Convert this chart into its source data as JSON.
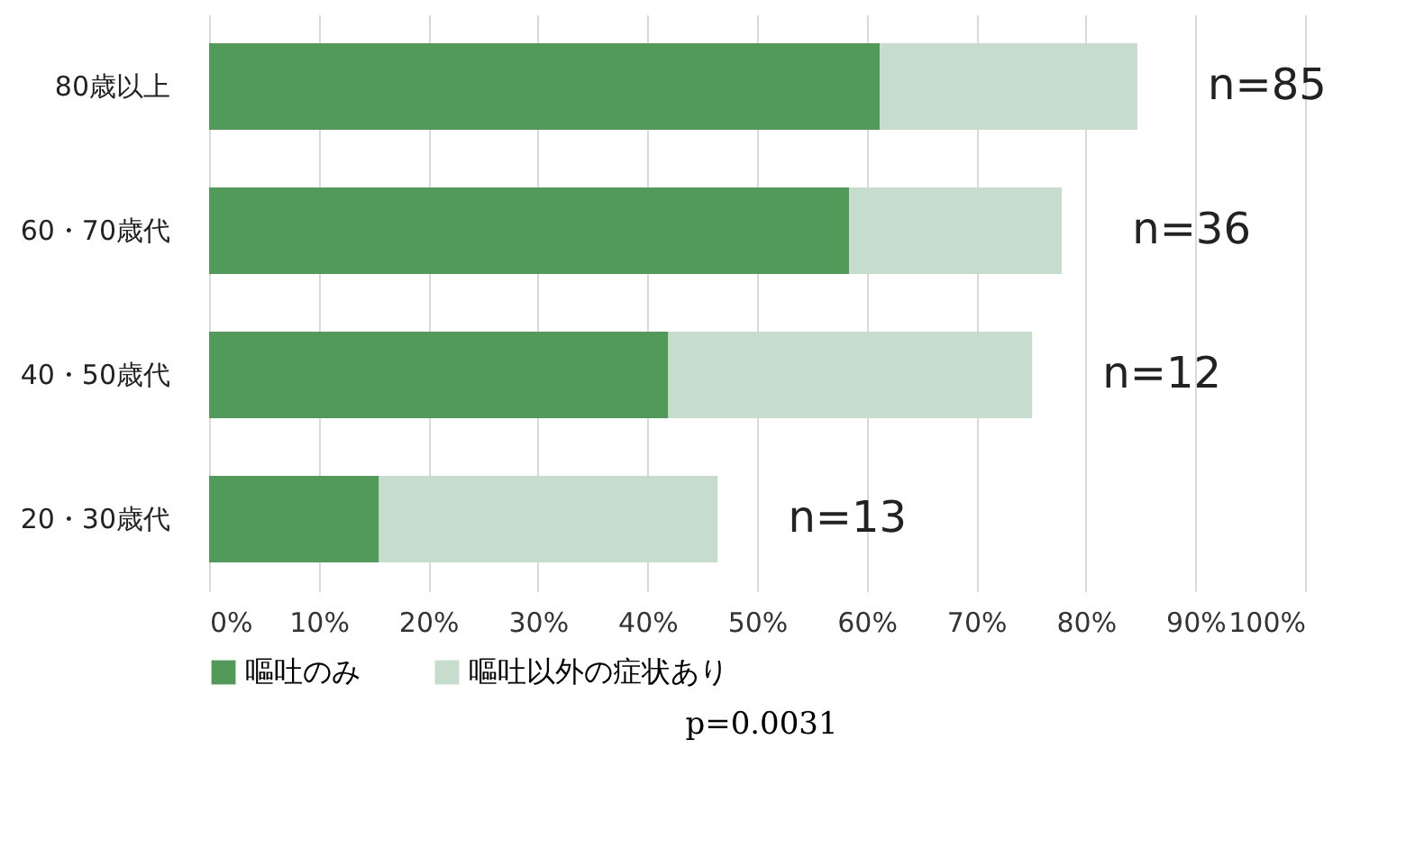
{
  "chart_data": {
    "type": "bar",
    "orientation": "horizontal",
    "stacked": true,
    "categories": [
      "80歳以上",
      "60・70歳代",
      "40・50歳代",
      "20・30歳代"
    ],
    "series": [
      {
        "name": "嘔吐のみ",
        "color": "#519a59",
        "values": [
          61.2,
          58.4,
          41.9,
          15.5
        ]
      },
      {
        "name": "嘔吐以外の症状あり",
        "color": "#c6dccc",
        "values": [
          23.5,
          19.4,
          33.2,
          30.9
        ]
      }
    ],
    "xlim": [
      0,
      100
    ],
    "xticks": [
      {
        "value": 0,
        "label": "0%"
      },
      {
        "value": 10,
        "label": "10%"
      },
      {
        "value": 20,
        "label": "20%"
      },
      {
        "value": 30,
        "label": "30%"
      },
      {
        "value": 40,
        "label": "40%"
      },
      {
        "value": 50,
        "label": "50%"
      },
      {
        "value": 60,
        "label": "60%"
      },
      {
        "value": 70,
        "label": "70%"
      },
      {
        "value": 80,
        "label": "80%"
      },
      {
        "value": 90,
        "label": "90%"
      },
      {
        "value": 100,
        "label": "100%"
      }
    ],
    "grid": "x",
    "legend": "bottom",
    "annotations": [
      "n=85",
      "n=36",
      "n=12",
      "n=13",
      "p=0.0031"
    ]
  }
}
